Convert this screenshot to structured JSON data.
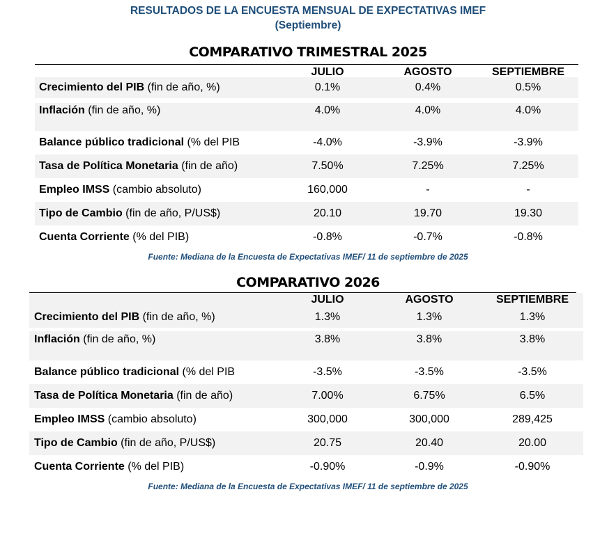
{
  "header": {
    "title": "RESULTADOS DE LA ENCUESTA MENSUAL DE EXPECTATIVAS IMEF",
    "subtitle": "(Septiembre)"
  },
  "tables": [
    {
      "title": "COMPARATIVO TRIMESTRAL 2025",
      "columns": [
        "JULIO",
        "AGOSTO",
        "SEPTIEMBRE"
      ],
      "rows": [
        {
          "label": "Crecimiento del PIB",
          "unit": " (fin de año, %)",
          "values": [
            "0.1%",
            "0.4%",
            "0.5%"
          ]
        },
        {
          "label": "Inflación",
          "unit": " (fin de año, %)",
          "values": [
            "4.0%",
            "4.0%",
            "4.0%"
          ]
        },
        {
          "label": "Balance público tradicional",
          "unit": " (% del PIB",
          "values": [
            "-4.0%",
            "-3.9%",
            "-3.9%"
          ]
        },
        {
          "label": "Tasa de Política Monetaria",
          "unit": " (fin de año)",
          "values": [
            "7.50%",
            "7.25%",
            "7.25%"
          ]
        },
        {
          "label": "Empleo IMSS",
          "unit": " (cambio absoluto)",
          "values": [
            "160,000",
            "-",
            "-"
          ]
        },
        {
          "label": "Tipo de Cambio",
          "unit": " (fin de año, P/US$)",
          "values": [
            "20.10",
            "19.70",
            "19.30"
          ]
        },
        {
          "label": "Cuenta Corriente",
          "unit": " (% del PIB)",
          "values": [
            "-0.8%",
            "-0.7%",
            "-0.8%"
          ]
        }
      ],
      "source": "Fuente: Mediana de la Encuesta de Expectativas IMEF/ 11 de septiembre de 2025"
    },
    {
      "title": "COMPARATIVO 2026",
      "columns": [
        "JULIO",
        "AGOSTO",
        "SEPTIEMBRE"
      ],
      "rows": [
        {
          "label": "Crecimiento del PIB",
          "unit": " (fin de año, %)",
          "values": [
            "1.3%",
            "1.3%",
            "1.3%"
          ]
        },
        {
          "label": "Inflación",
          "unit": " (fin de año, %)",
          "values": [
            "3.8%",
            "3.8%",
            "3.8%"
          ]
        },
        {
          "label": "Balance público tradicional",
          "unit": " (% del PIB",
          "values": [
            "-3.5%",
            "-3.5%",
            "-3.5%"
          ]
        },
        {
          "label": "Tasa de Política Monetaria",
          "unit": " (fin de año)",
          "values": [
            "7.00%",
            "6.75%",
            "6.5%"
          ]
        },
        {
          "label": "Empleo IMSS",
          "unit": " (cambio absoluto)",
          "values": [
            "300,000",
            "300,000",
            "289,425"
          ]
        },
        {
          "label": "Tipo de Cambio",
          "unit": " (fin de año, P/US$)",
          "values": [
            "20.75",
            "20.40",
            "20.00"
          ]
        },
        {
          "label": "Cuenta Corriente",
          "unit": " (% del PIB)",
          "values": [
            "-0.90%",
            "-0.9%",
            "-0.90%"
          ]
        }
      ],
      "source": "Fuente: Mediana de la Encuesta de Expectativas IMEF/ 11 de septiembre de 2025"
    }
  ]
}
